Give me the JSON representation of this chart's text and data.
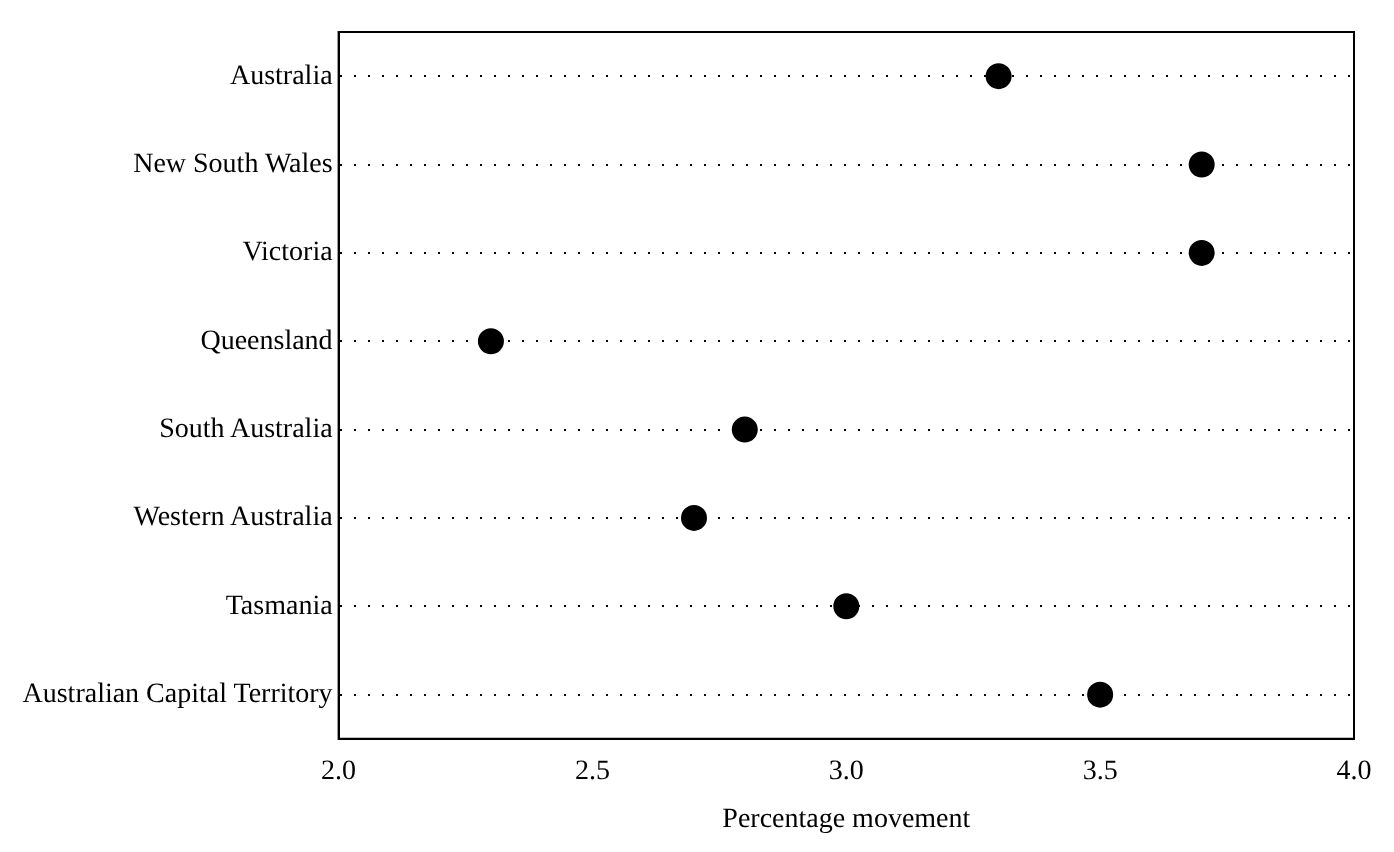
{
  "chart_data": {
    "type": "scatter",
    "orientation": "horizontal",
    "xlabel": "Percentage movement",
    "categories": [
      "Australia",
      "New South Wales",
      "Victoria",
      "Queensland",
      "South Australia",
      "Western Australia",
      "Tasmania",
      "Australian Capital Territory"
    ],
    "values": [
      3.3,
      3.7,
      3.7,
      2.3,
      2.8,
      2.7,
      3.0,
      3.5
    ],
    "color": "#000000",
    "xlim": [
      2,
      4
    ],
    "xticks": [
      {
        "value": 2,
        "label": "2.0"
      },
      {
        "value": 2.5,
        "label": "2.5"
      },
      {
        "value": 3,
        "label": "3.0"
      },
      {
        "value": 3.5,
        "label": "3.5"
      },
      {
        "value": 4,
        "label": "4.0"
      }
    ],
    "grid": "y",
    "legend": false,
    "marker": "circle"
  }
}
